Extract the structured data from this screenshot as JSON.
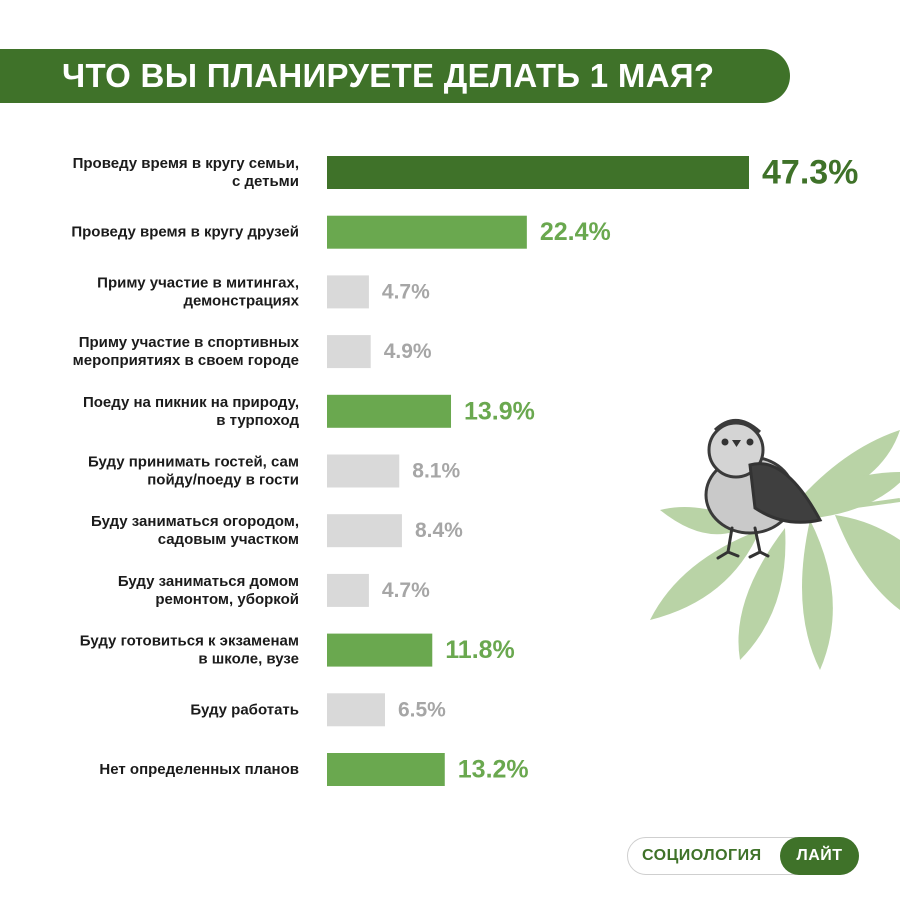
{
  "title": "ЧТО ВЫ ПЛАНИРУЕТЕ ДЕЛАТЬ 1 МАЯ?",
  "colors": {
    "banner": "#3f7229",
    "dark_green": "#3f7229",
    "green": "#6aa84f",
    "gray_bar": "#d9d9d9",
    "gray_text": "#a6a6a6"
  },
  "chart_data": {
    "type": "bar",
    "orientation": "horizontal",
    "title": "ЧТО ВЫ ПЛАНИРУЕТЕ ДЕЛАТЬ 1 МАЯ?",
    "unit": "%",
    "categories": [
      [
        "Проведу время в кругу семьи,",
        "с детьми"
      ],
      [
        "Проведу время в кругу друзей"
      ],
      [
        "Приму участие в митингах,",
        "демонстрациях"
      ],
      [
        "Приму участие в спортивных",
        "мероприятиях в своем городе"
      ],
      [
        "Поеду на пикник на природу,",
        "в турпоход"
      ],
      [
        "Буду принимать гостей, сам",
        "пойду/поеду в гости"
      ],
      [
        "Буду заниматься огородом,",
        "садовым участком"
      ],
      [
        "Буду заниматься домом",
        "ремонтом, уборкой"
      ],
      [
        "Буду готовиться к экзаменам",
        "в школе, вузе"
      ],
      [
        "Буду работать"
      ],
      [
        "Нет определенных планов"
      ]
    ],
    "values": [
      47.3,
      22.4,
      4.7,
      4.9,
      13.9,
      8.1,
      8.4,
      4.7,
      11.8,
      6.5,
      13.2
    ],
    "value_labels": [
      "47.3%",
      "22.4%",
      "4.7%",
      "4.9%",
      "13.9%",
      "8.1%",
      "8.4%",
      "4.7%",
      "11.8%",
      "6.5%",
      "13.2%"
    ],
    "bar_styles": [
      "top",
      "highlight",
      "muted",
      "muted",
      "highlight",
      "muted",
      "muted",
      "muted",
      "highlight",
      "muted",
      "highlight"
    ],
    "xlim": [
      0,
      47.3
    ]
  },
  "brand": {
    "left": "СОЦИОЛОГИЯ",
    "right": "ЛАЙТ"
  }
}
